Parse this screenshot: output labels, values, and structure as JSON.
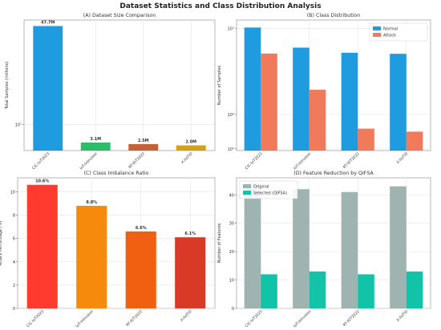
{
  "suptitle": "Dataset Statistics and Class Distribution Analysis",
  "chart_data": [
    {
      "id": "A",
      "type": "bar",
      "title": "(A) Dataset Size Comparison",
      "xlabel": "",
      "ylabel": "Total Samples (millions)",
      "yscale": "linear",
      "ylim": [
        0,
        50
      ],
      "categories": [
        "CIC-IoT2023",
        "IoT-Intrusion",
        "RT-IOT2022",
        "X-IIoTID"
      ],
      "values": [
        47.7,
        3.1,
        2.5,
        2.0
      ],
      "value_labels": [
        "47.7M",
        "3.1M",
        "2.5M",
        "2.0M"
      ],
      "yticks": [
        {
          "v": 10,
          "t": "10¹"
        }
      ],
      "colors": [
        "#1f9be0",
        "#2dbd6a",
        "#c0623a",
        "#d4a017"
      ],
      "grid": true
    },
    {
      "id": "B",
      "type": "bar",
      "title": "(B) Class Distribution",
      "xlabel": "",
      "ylabel": "Number of Samples",
      "yscale": "log",
      "ylim": [
        0.8,
        30000000
      ],
      "categories": [
        "CIC-IoT2023",
        "IoT-Intrusion",
        "RT-IOT2022",
        "X-IIoTID"
      ],
      "series": [
        {
          "name": "Normal",
          "values": [
            11000000,
            750000,
            380000,
            330000
          ],
          "color": "#1f9be0"
        },
        {
          "name": "Attack",
          "values": [
            340000,
            2700,
            15,
            10
          ],
          "color": "#f07a5a"
        }
      ],
      "yticks": [
        {
          "v": 1,
          "t": "10⁰"
        },
        {
          "v": 100,
          "t": "10²"
        },
        {
          "v": 10000000,
          "t": "10⁷"
        }
      ],
      "legend": "top-right",
      "grid": true
    },
    {
      "id": "C",
      "type": "bar",
      "title": "(C) Class Imbalance Ratio",
      "xlabel": "",
      "ylabel": "Attack Percentage (%)",
      "yscale": "linear",
      "ylim": [
        0,
        11.2
      ],
      "categories": [
        "CIC-IoT2023",
        "IoT-Intrusion",
        "RT-IOT2022",
        "X-IIoTID"
      ],
      "values": [
        10.6,
        8.8,
        6.6,
        6.1
      ],
      "value_labels": [
        "10.6%",
        "8.8%",
        "6.6%",
        "6.1%"
      ],
      "yticks": [
        {
          "v": 0,
          "t": "0"
        },
        {
          "v": 2,
          "t": "2"
        },
        {
          "v": 4,
          "t": "4"
        },
        {
          "v": 6,
          "t": "6"
        },
        {
          "v": 8,
          "t": "8"
        },
        {
          "v": 10,
          "t": "10"
        }
      ],
      "colors": [
        "#ff3b30",
        "#f58a0c",
        "#f06010",
        "#d93a28"
      ],
      "grid": true
    },
    {
      "id": "D",
      "type": "bar",
      "title": "(D) Feature Reduction by QIFSA",
      "xlabel": "",
      "ylabel": "Number of Features",
      "yscale": "linear",
      "ylim": [
        0,
        46
      ],
      "categories": [
        "CIC-IoT2023",
        "IoT-Intrusion",
        "RT-IOT2022",
        "X-IIoTID"
      ],
      "series": [
        {
          "name": "Original",
          "values": [
            44,
            42,
            41,
            43
          ],
          "color": "#9fb3b1"
        },
        {
          "name": "Selected (QIFSA)",
          "values": [
            12,
            13,
            12,
            13
          ],
          "color": "#12c3a8"
        }
      ],
      "yticks": [
        {
          "v": 0,
          "t": "0"
        },
        {
          "v": 10,
          "t": "10"
        },
        {
          "v": 20,
          "t": "20"
        },
        {
          "v": 30,
          "t": "30"
        },
        {
          "v": 40,
          "t": "40"
        }
      ],
      "legend": "top-left",
      "grid": true
    }
  ]
}
